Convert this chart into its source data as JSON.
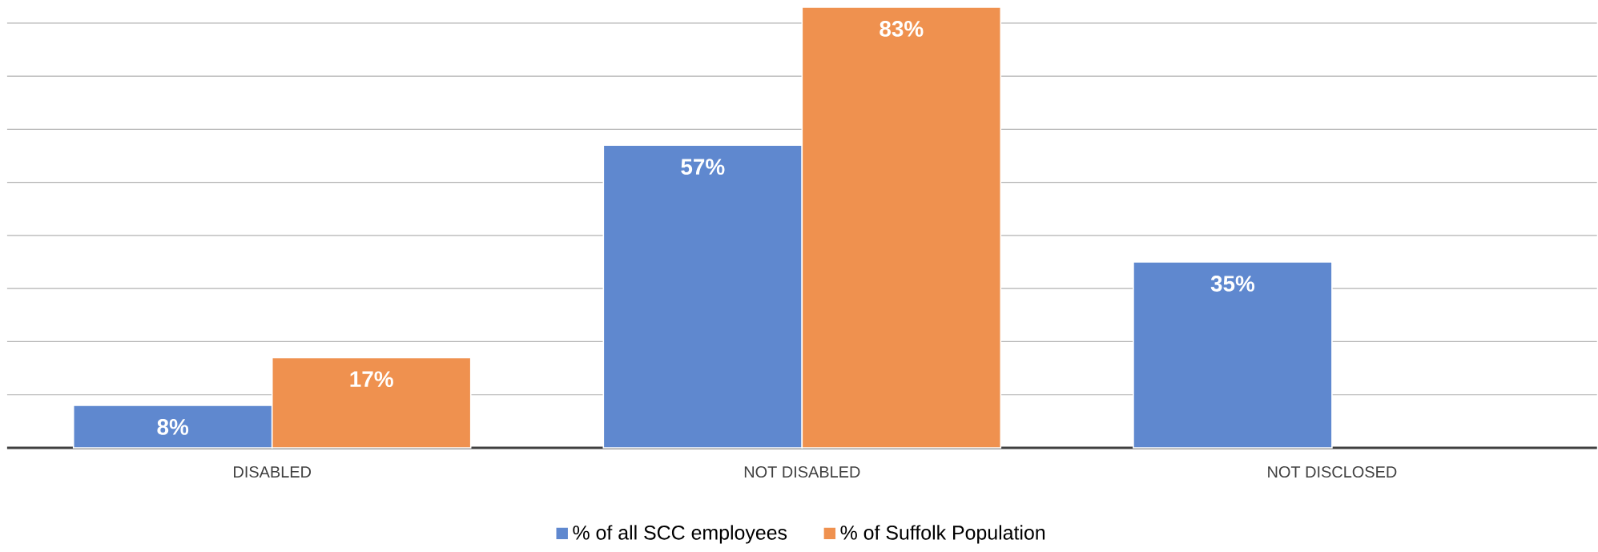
{
  "chart_data": {
    "type": "bar",
    "categories": [
      "DISABLED",
      "NOT DISABLED",
      "NOT DISCLOSED"
    ],
    "series": [
      {
        "name": "% of  all SCC employees",
        "color": "#5f88cf",
        "values": [
          8,
          57,
          35
        ],
        "value_labels": [
          "8%",
          "57%",
          "35%"
        ]
      },
      {
        "name": "% of Suffolk Population",
        "color": "#ef914f",
        "values": [
          17,
          83,
          null
        ],
        "value_labels": [
          "17%",
          "83%",
          null
        ]
      }
    ],
    "grid": "y",
    "legend": "bottom",
    "tick_labels": "x"
  }
}
